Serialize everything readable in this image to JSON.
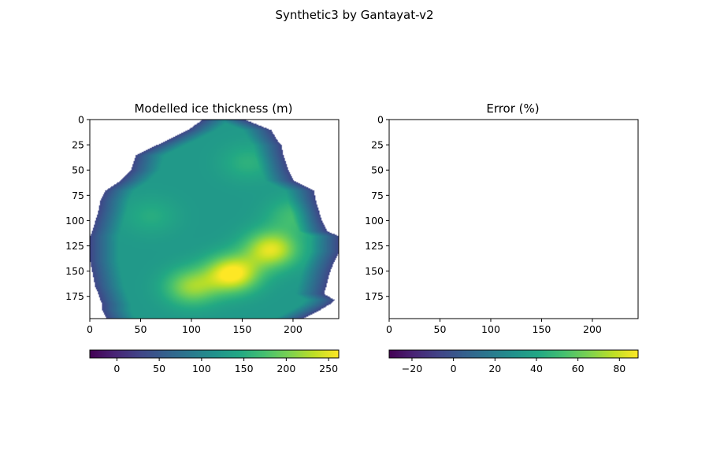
{
  "figure": {
    "suptitle": "Synthetic3 by Gantayat-v2"
  },
  "chart_data": [
    {
      "type": "heatmap",
      "title": "Modelled ice thickness (m)",
      "xlabel": "",
      "ylabel": "",
      "xlim": [
        0,
        245
      ],
      "ylim": [
        197,
        0
      ],
      "x_ticks": [
        0,
        50,
        100,
        150,
        200
      ],
      "y_ticks": [
        0,
        25,
        50,
        75,
        100,
        125,
        150,
        175
      ],
      "grid": false,
      "colormap": "viridis",
      "colorbar": {
        "orientation": "horizontal",
        "placement": "below",
        "range": [
          -32,
          262
        ],
        "ticks": [
          0,
          50,
          100,
          150,
          200,
          250
        ]
      },
      "outline_rows": [
        [
          0,
          110,
          153
        ],
        [
          10,
          96,
          178
        ],
        [
          20,
          76,
          184
        ],
        [
          25,
          65,
          188
        ],
        [
          35,
          45,
          190
        ],
        [
          50,
          40,
          195
        ],
        [
          60,
          30,
          200
        ],
        [
          70,
          15,
          220
        ],
        [
          80,
          10,
          222
        ],
        [
          90,
          8,
          225
        ],
        [
          100,
          5,
          228
        ],
        [
          110,
          2,
          233
        ],
        [
          115,
          0,
          245
        ],
        [
          130,
          0,
          245
        ],
        [
          140,
          0,
          240
        ],
        [
          150,
          2,
          236
        ],
        [
          165,
          5,
          232
        ],
        [
          172,
          8,
          230
        ],
        [
          178,
          10,
          240
        ],
        [
          182,
          12,
          236
        ],
        [
          188,
          12,
          226
        ],
        [
          192,
          14,
          218
        ],
        [
          196,
          16,
          210
        ]
      ],
      "features": [
        {
          "kind": "peak",
          "x": 140,
          "y": 152,
          "value": 255
        },
        {
          "kind": "peak",
          "x": 178,
          "y": 128,
          "value": 235
        },
        {
          "kind": "peak",
          "x": 100,
          "y": 165,
          "value": 200
        },
        {
          "kind": "peak",
          "x": 155,
          "y": 42,
          "value": 140
        },
        {
          "kind": "peak",
          "x": 200,
          "y": 95,
          "value": 155
        },
        {
          "kind": "peak",
          "x": 60,
          "y": 95,
          "value": 135
        }
      ]
    },
    {
      "type": "heatmap",
      "title": "Error (%)",
      "xlabel": "",
      "ylabel": "",
      "xlim": [
        0,
        245
      ],
      "ylim": [
        197,
        0
      ],
      "x_ticks": [
        0,
        50,
        100,
        150,
        200
      ],
      "y_ticks": [
        0,
        25,
        50,
        75,
        100,
        125,
        150,
        175
      ],
      "grid": false,
      "colormap": "viridis",
      "colorbar": {
        "orientation": "horizontal",
        "placement": "below",
        "range": [
          -31,
          89
        ],
        "ticks": [
          -20,
          0,
          20,
          40,
          60,
          80
        ]
      },
      "values": []
    }
  ]
}
